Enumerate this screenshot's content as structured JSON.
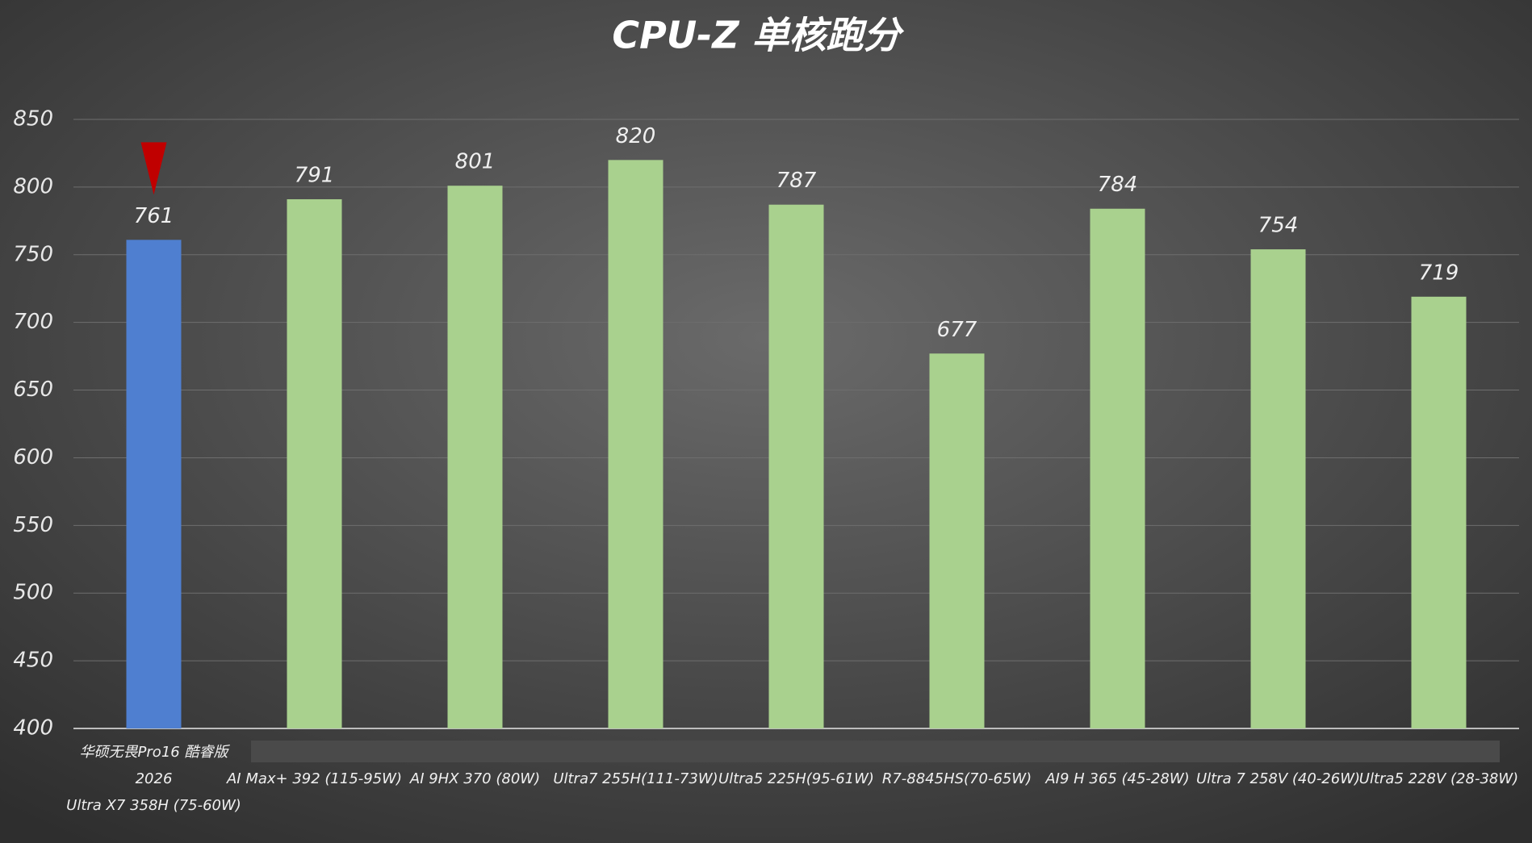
{
  "chart_data": {
    "type": "bar",
    "title": "CPU-Z 单核跑分",
    "categories": [
      [
        "华硕无畏Pro16 酷睿版",
        "2026",
        "Ultra X7 358H (75-60W)"
      ],
      "AI Max+ 392 (115-95W)",
      "AI 9HX 370 (80W)",
      "Ultra7 255H(111-73W)",
      "Ultra5 225H(95-61W)",
      "R7-8845HS(70-65W)",
      "AI9 H 365 (45-28W)",
      "Ultra 7 258V (40-26W)",
      "Ultra5 228V (28-38W)"
    ],
    "values": [
      761,
      791,
      801,
      820,
      787,
      677,
      784,
      754,
      719
    ],
    "colors": [
      "#4f7fd0",
      "#a9d18e",
      "#a9d18e",
      "#a9d18e",
      "#a9d18e",
      "#a9d18e",
      "#a9d18e",
      "#a9d18e",
      "#a9d18e"
    ],
    "ylim": [
      400,
      850
    ],
    "yticks": [
      400,
      450,
      500,
      550,
      600,
      650,
      700,
      750,
      800,
      850
    ],
    "grid": true
  }
}
